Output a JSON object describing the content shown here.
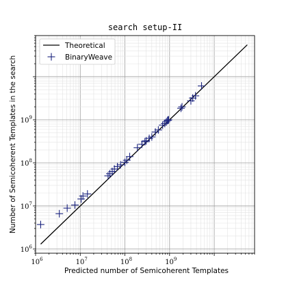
{
  "chart_data": {
    "type": "scatter",
    "title": "search setup-II",
    "xlabel": "Predicted number of Semicoherent Templates",
    "ylabel": "Number of Semicoherent Templates in the search",
    "xscale": "log",
    "yscale": "log",
    "xlim": [
      1000000,
      80000000000
    ],
    "ylim": [
      800000,
      90000000000
    ],
    "xticks": [
      {
        "value": 1000000,
        "base": "10",
        "exp": "6"
      },
      {
        "value": 10000000,
        "base": "10",
        "exp": "7"
      },
      {
        "value": 100000000,
        "base": "10",
        "exp": "8"
      },
      {
        "value": 1000000000,
        "base": "10",
        "exp": "9"
      }
    ],
    "yticks": [
      {
        "value": 1000000,
        "base": "10",
        "exp": "6"
      },
      {
        "value": 10000000,
        "base": "10",
        "exp": "7"
      },
      {
        "value": 100000000,
        "base": "10",
        "exp": "8"
      },
      {
        "value": 1000000000,
        "base": "10",
        "exp": "9"
      }
    ],
    "grid": true,
    "legend_position": "top-left",
    "series": [
      {
        "name": "Theoretical",
        "kind": "line",
        "color": "#000000",
        "x": [
          1300000,
          55000000000
        ],
        "y": [
          1300000,
          55000000000
        ]
      },
      {
        "name": "BinaryWeave",
        "kind": "marker",
        "marker": "plus",
        "color": "#1a237e",
        "points": [
          [
            1300000,
            3700000
          ],
          [
            3400000,
            6600000
          ],
          [
            5100000,
            8900000
          ],
          [
            7600000,
            10500000
          ],
          [
            10500000,
            14500000
          ],
          [
            11500000,
            17000000
          ],
          [
            14500000,
            19000000
          ],
          [
            42000000,
            50000000
          ],
          [
            46000000,
            56000000
          ],
          [
            52000000,
            63000000
          ],
          [
            58000000,
            72000000
          ],
          [
            68000000,
            82000000
          ],
          [
            80000000,
            90000000
          ],
          [
            100000000,
            103000000
          ],
          [
            110000000,
            115000000
          ],
          [
            128000000,
            140000000
          ],
          [
            190000000,
            225000000
          ],
          [
            240000000,
            270000000
          ],
          [
            280000000,
            310000000
          ],
          [
            300000000,
            325000000
          ],
          [
            350000000,
            370000000
          ],
          [
            400000000,
            400000000
          ],
          [
            480000000,
            520000000
          ],
          [
            560000000,
            580000000
          ],
          [
            700000000,
            750000000
          ],
          [
            780000000,
            820000000
          ],
          [
            850000000,
            900000000
          ],
          [
            900000000,
            960000000
          ],
          [
            920000000,
            980000000
          ],
          [
            950000000,
            1000000000
          ],
          [
            1800000000,
            1850000000
          ],
          [
            1900000000,
            2000000000
          ],
          [
            3000000000,
            2750000000
          ],
          [
            3300000000,
            3200000000
          ],
          [
            3800000000,
            3600000000
          ],
          [
            5200000000,
            6100000000
          ]
        ]
      }
    ]
  }
}
